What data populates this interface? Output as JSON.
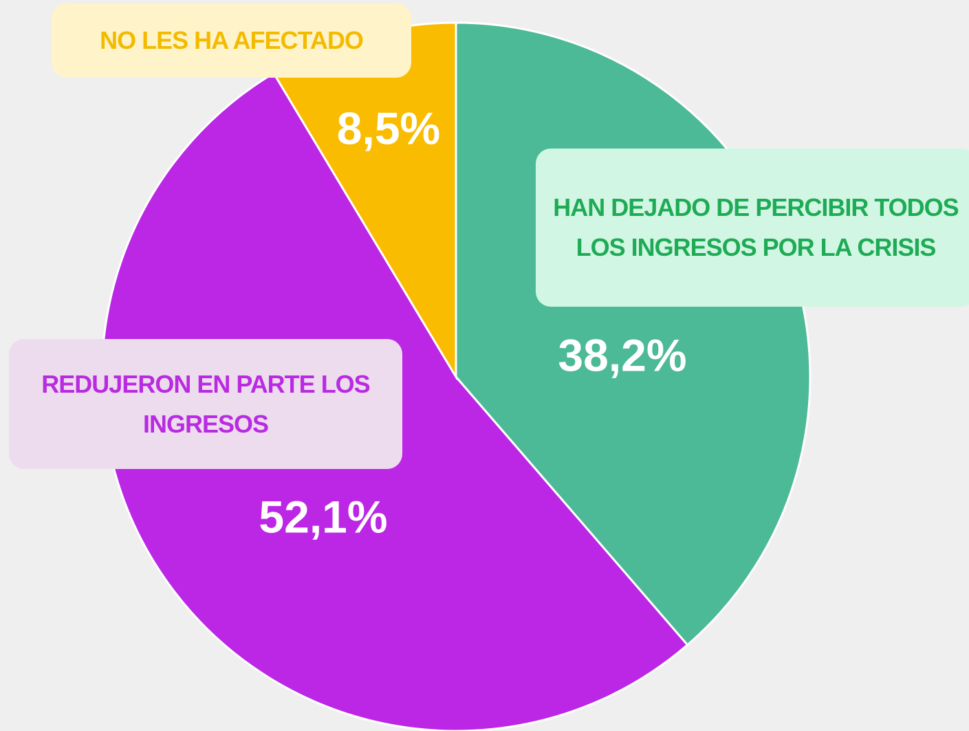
{
  "chart_data": {
    "type": "pie",
    "categories": [
      "HAN DEJADO DE PERCIBIR TODOS LOS INGRESOS POR LA CRISIS",
      "REDUJERON EN PARTE LOS INGRESOS",
      "NO LES HA AFECTADO"
    ],
    "values": [
      38.2,
      52.1,
      8.5
    ],
    "value_labels": [
      "38,2%",
      "52,1%",
      "8,5%"
    ],
    "colors": [
      "#4cba96",
      "#bb27e5",
      "#f9bc00"
    ]
  }
}
